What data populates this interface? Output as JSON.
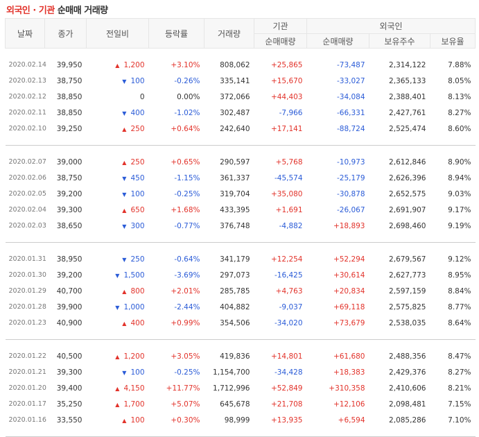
{
  "title": {
    "highlight": "외국인 · 기관",
    "rest": "순매매 거래량"
  },
  "headers": {
    "date": "날짜",
    "close": "종가",
    "change": "전일비",
    "rate": "등락률",
    "volume": "거래량",
    "institution": "기관",
    "foreign": "외국인",
    "inst_net": "순매매량",
    "for_net": "순매매량",
    "holdings": "보유주수",
    "ratio": "보유율"
  },
  "groups": [
    [
      {
        "date": "2020.02.14",
        "close": "39,950",
        "dir": "up",
        "change": "1,200",
        "rate": "+3.10%",
        "volume": "808,062",
        "inst": "+25,865",
        "foreign": "-73,487",
        "holdings": "2,314,122",
        "ratio": "7.88%"
      },
      {
        "date": "2020.02.13",
        "close": "38,750",
        "dir": "down",
        "change": "100",
        "rate": "-0.26%",
        "volume": "335,141",
        "inst": "+15,670",
        "foreign": "-33,027",
        "holdings": "2,365,133",
        "ratio": "8.05%"
      },
      {
        "date": "2020.02.12",
        "close": "38,850",
        "dir": "flat",
        "change": "0",
        "rate": "0.00%",
        "volume": "372,066",
        "inst": "+44,403",
        "foreign": "-34,084",
        "holdings": "2,388,401",
        "ratio": "8.13%"
      },
      {
        "date": "2020.02.11",
        "close": "38,850",
        "dir": "down",
        "change": "400",
        "rate": "-1.02%",
        "volume": "302,487",
        "inst": "-7,966",
        "foreign": "-66,331",
        "holdings": "2,427,761",
        "ratio": "8.27%"
      },
      {
        "date": "2020.02.10",
        "close": "39,250",
        "dir": "up",
        "change": "250",
        "rate": "+0.64%",
        "volume": "242,640",
        "inst": "+17,141",
        "foreign": "-88,724",
        "holdings": "2,525,474",
        "ratio": "8.60%"
      }
    ],
    [
      {
        "date": "2020.02.07",
        "close": "39,000",
        "dir": "up",
        "change": "250",
        "rate": "+0.65%",
        "volume": "290,597",
        "inst": "+5,768",
        "foreign": "-10,973",
        "holdings": "2,612,846",
        "ratio": "8.90%"
      },
      {
        "date": "2020.02.06",
        "close": "38,750",
        "dir": "down",
        "change": "450",
        "rate": "-1.15%",
        "volume": "361,337",
        "inst": "-45,574",
        "foreign": "-25,179",
        "holdings": "2,626,396",
        "ratio": "8.94%"
      },
      {
        "date": "2020.02.05",
        "close": "39,200",
        "dir": "down",
        "change": "100",
        "rate": "-0.25%",
        "volume": "319,704",
        "inst": "+35,080",
        "foreign": "-30,878",
        "holdings": "2,652,575",
        "ratio": "9.03%"
      },
      {
        "date": "2020.02.04",
        "close": "39,300",
        "dir": "up",
        "change": "650",
        "rate": "+1.68%",
        "volume": "433,395",
        "inst": "+1,691",
        "foreign": "-26,067",
        "holdings": "2,691,907",
        "ratio": "9.17%"
      },
      {
        "date": "2020.02.03",
        "close": "38,650",
        "dir": "down",
        "change": "300",
        "rate": "-0.77%",
        "volume": "376,748",
        "inst": "-4,882",
        "foreign": "+18,893",
        "holdings": "2,698,460",
        "ratio": "9.19%"
      }
    ],
    [
      {
        "date": "2020.01.31",
        "close": "38,950",
        "dir": "down",
        "change": "250",
        "rate": "-0.64%",
        "volume": "341,179",
        "inst": "+12,254",
        "foreign": "+52,294",
        "holdings": "2,679,567",
        "ratio": "9.12%"
      },
      {
        "date": "2020.01.30",
        "close": "39,200",
        "dir": "down",
        "change": "1,500",
        "rate": "-3.69%",
        "volume": "297,073",
        "inst": "-16,425",
        "foreign": "+30,614",
        "holdings": "2,627,773",
        "ratio": "8.95%"
      },
      {
        "date": "2020.01.29",
        "close": "40,700",
        "dir": "up",
        "change": "800",
        "rate": "+2.01%",
        "volume": "285,785",
        "inst": "+4,763",
        "foreign": "+20,834",
        "holdings": "2,597,159",
        "ratio": "8.84%"
      },
      {
        "date": "2020.01.28",
        "close": "39,900",
        "dir": "down",
        "change": "1,000",
        "rate": "-2.44%",
        "volume": "404,882",
        "inst": "-9,037",
        "foreign": "+69,118",
        "holdings": "2,575,825",
        "ratio": "8.77%"
      },
      {
        "date": "2020.01.23",
        "close": "40,900",
        "dir": "up",
        "change": "400",
        "rate": "+0.99%",
        "volume": "354,506",
        "inst": "-34,020",
        "foreign": "+73,679",
        "holdings": "2,538,035",
        "ratio": "8.64%"
      }
    ],
    [
      {
        "date": "2020.01.22",
        "close": "40,500",
        "dir": "up",
        "change": "1,200",
        "rate": "+3.05%",
        "volume": "419,836",
        "inst": "+14,801",
        "foreign": "+61,680",
        "holdings": "2,488,356",
        "ratio": "8.47%"
      },
      {
        "date": "2020.01.21",
        "close": "39,300",
        "dir": "down",
        "change": "100",
        "rate": "-0.25%",
        "volume": "1,154,700",
        "inst": "-34,428",
        "foreign": "+18,383",
        "holdings": "2,429,376",
        "ratio": "8.27%"
      },
      {
        "date": "2020.01.20",
        "close": "39,400",
        "dir": "up",
        "change": "4,150",
        "rate": "+11.77%",
        "volume": "1,712,996",
        "inst": "+52,849",
        "foreign": "+310,358",
        "holdings": "2,410,606",
        "ratio": "8.21%"
      },
      {
        "date": "2020.01.17",
        "close": "35,250",
        "dir": "up",
        "change": "1,700",
        "rate": "+5.07%",
        "volume": "645,678",
        "inst": "+21,708",
        "foreign": "+12,106",
        "holdings": "2,098,481",
        "ratio": "7.15%"
      },
      {
        "date": "2020.01.16",
        "close": "33,550",
        "dir": "up",
        "change": "100",
        "rate": "+0.30%",
        "volume": "98,999",
        "inst": "+13,935",
        "foreign": "+6,594",
        "holdings": "2,085,286",
        "ratio": "7.10%"
      }
    ]
  ],
  "colors": {
    "up": "#e2322a",
    "down": "#2a5bd7",
    "header_bg": "#f7f7f7"
  },
  "icons": {
    "up": "triangle-up-icon",
    "down": "triangle-down-icon"
  }
}
